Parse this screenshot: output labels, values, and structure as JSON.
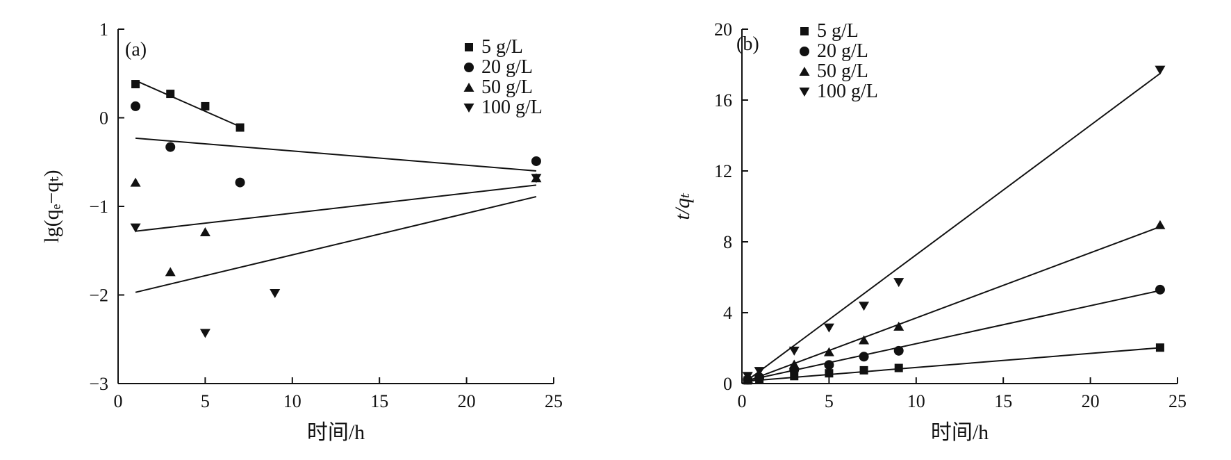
{
  "chart_data": [
    {
      "id": "a",
      "type": "scatter",
      "panel_label": "(a)",
      "xlabel": "时间/h",
      "ylabel": "lg(qₑ−qₜ)",
      "xlim": [
        0,
        25
      ],
      "ylim": [
        -3,
        1
      ],
      "x_ticks": [
        0,
        5,
        10,
        15,
        20,
        25
      ],
      "y_ticks": [
        -3,
        -2,
        -1,
        0,
        1
      ],
      "x_tick_labels": [
        "0",
        "5",
        "10",
        "15",
        "20",
        "25"
      ],
      "y_tick_labels": [
        "−3",
        "−2",
        "−1",
        "0",
        "1"
      ],
      "grid": false,
      "legend_position": "top-right",
      "series": [
        {
          "name": "5 g/L",
          "marker": "square",
          "points": [
            [
              1,
              0.38
            ],
            [
              3,
              0.27
            ],
            [
              5,
              0.13
            ],
            [
              7,
              -0.11
            ]
          ],
          "fit": [
            [
              1,
              0.42
            ],
            [
              7,
              -0.1
            ]
          ]
        },
        {
          "name": "20 g/L",
          "marker": "circle",
          "points": [
            [
              1,
              0.13
            ],
            [
              3,
              -0.33
            ],
            [
              7,
              -0.73
            ],
            [
              24,
              -0.49
            ]
          ],
          "fit": [
            [
              1,
              -0.23
            ],
            [
              24,
              -0.6
            ]
          ]
        },
        {
          "name": "50 g/L",
          "marker": "triangle-up",
          "points": [
            [
              1,
              -0.73
            ],
            [
              3,
              -1.74
            ],
            [
              5,
              -1.29
            ],
            [
              24,
              -0.68
            ]
          ],
          "fit": [
            [
              1,
              -1.97
            ],
            [
              24,
              -0.89
            ]
          ]
        },
        {
          "name": "100 g/L",
          "marker": "triangle-down",
          "points": [
            [
              1,
              -1.24
            ],
            [
              5,
              -2.43
            ],
            [
              9,
              -1.98
            ],
            [
              24,
              -0.68
            ]
          ],
          "fit": [
            [
              1,
              -1.28
            ],
            [
              24,
              -0.76
            ]
          ]
        }
      ]
    },
    {
      "id": "b",
      "type": "scatter",
      "panel_label": "(b)",
      "xlabel": "时间/h",
      "ylabel": "t/qₜ",
      "xlim": [
        0,
        25
      ],
      "ylim": [
        0,
        20
      ],
      "x_ticks": [
        0,
        5,
        10,
        15,
        20,
        25
      ],
      "y_ticks": [
        0,
        4,
        8,
        12,
        16,
        20
      ],
      "x_tick_labels": [
        "0",
        "5",
        "10",
        "15",
        "20",
        "25"
      ],
      "y_tick_labels": [
        "0",
        "4",
        "8",
        "12",
        "16",
        "20"
      ],
      "grid": false,
      "legend_position": "top-left",
      "series": [
        {
          "name": "5 g/L",
          "marker": "square",
          "points": [
            [
              0.33,
              0.18
            ],
            [
              1,
              0.25
            ],
            [
              3,
              0.42
            ],
            [
              5,
              0.58
            ],
            [
              7,
              0.75
            ],
            [
              9,
              0.88
            ],
            [
              24,
              2.03
            ]
          ],
          "fit": [
            [
              0.33,
              0.14
            ],
            [
              24,
              2.02
            ]
          ]
        },
        {
          "name": "20 g/L",
          "marker": "circle",
          "points": [
            [
              0.33,
              0.22
            ],
            [
              1,
              0.35
            ],
            [
              3,
              0.78
            ],
            [
              5,
              1.05
            ],
            [
              7,
              1.52
            ],
            [
              9,
              1.85
            ],
            [
              24,
              5.3
            ]
          ],
          "fit": [
            [
              0.33,
              0.18
            ],
            [
              24,
              5.25
            ]
          ]
        },
        {
          "name": "50 g/L",
          "marker": "triangle-up",
          "points": [
            [
              0.33,
              0.28
            ],
            [
              1,
              0.45
            ],
            [
              3,
              1.08
            ],
            [
              5,
              1.78
            ],
            [
              7,
              2.45
            ],
            [
              9,
              3.22
            ],
            [
              24,
              8.95
            ]
          ],
          "fit": [
            [
              0.33,
              0.15
            ],
            [
              24,
              8.85
            ]
          ]
        },
        {
          "name": "100 g/L",
          "marker": "triangle-down",
          "points": [
            [
              0.33,
              0.42
            ],
            [
              1,
              0.7
            ],
            [
              3,
              1.85
            ],
            [
              5,
              3.15
            ],
            [
              7,
              4.38
            ],
            [
              9,
              5.72
            ],
            [
              24,
              17.7
            ]
          ],
          "fit": [
            [
              0.33,
              0.2
            ],
            [
              24,
              17.5
            ]
          ]
        }
      ]
    }
  ]
}
